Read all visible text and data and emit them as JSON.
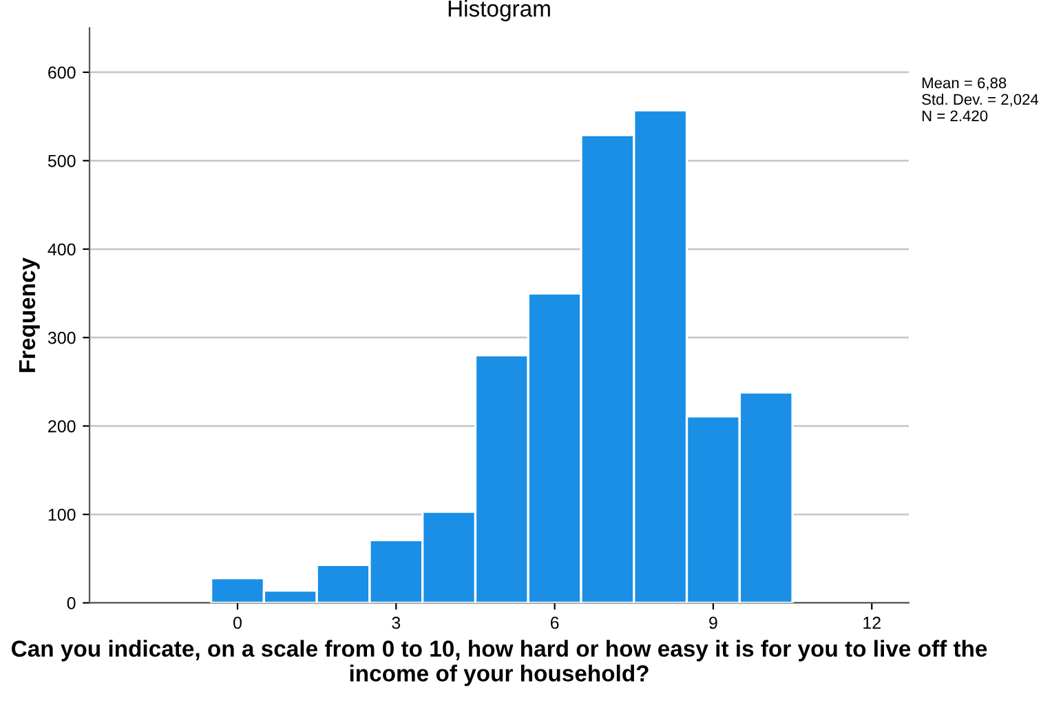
{
  "chart_data": {
    "type": "histogram",
    "title": "Histogram",
    "xlabel": "Can you indicate, on a scale from 0 to 10, how hard or how easy it is for you to live off the income of your household?",
    "ylabel": "Frequency",
    "bins": [
      -0.5,
      0.5,
      1.5,
      2.5,
      3.5,
      4.5,
      5.5,
      6.5,
      7.5,
      8.5,
      9.5,
      10.5
    ],
    "values": [
      28,
      14,
      43,
      71,
      103,
      280,
      350,
      529,
      557,
      211,
      238
    ],
    "color": "#1a8fe5",
    "xlim": [
      -2.8,
      12.7
    ],
    "xticks": [
      0,
      3,
      6,
      9,
      12
    ],
    "ylim": [
      0,
      650
    ],
    "yticks": [
      0,
      100,
      200,
      300,
      400,
      500,
      600
    ],
    "grid": "y",
    "annotations": [
      "Mean = 6,88\nStd. Dev. = 2,024\nN = 2.420"
    ]
  }
}
